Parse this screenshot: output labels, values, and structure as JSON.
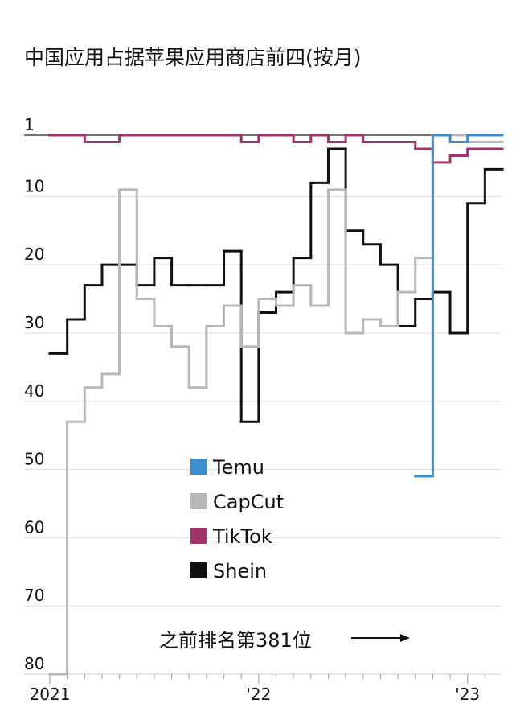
{
  "chart_data": {
    "type": "step-line",
    "title": "中国应用占据苹果应用商店前四(按月)",
    "annotation": "之前排名第381位",
    "categories": [
      "2021",
      null,
      null,
      null,
      null,
      null,
      null,
      null,
      null,
      null,
      null,
      null,
      "'22",
      null,
      null,
      null,
      null,
      null,
      null,
      null,
      null,
      null,
      null,
      null,
      "'23",
      null
    ],
    "ylim": [
      1,
      80
    ],
    "yticks": [
      1,
      10,
      20,
      30,
      40,
      50,
      60,
      70,
      80
    ],
    "y_inverted": true,
    "grid": true,
    "series": [
      {
        "name": "Temu",
        "color": "#3a8fd0",
        "values": [
          null,
          null,
          null,
          null,
          null,
          null,
          null,
          null,
          null,
          null,
          null,
          null,
          null,
          null,
          null,
          null,
          null,
          null,
          null,
          null,
          null,
          51,
          1,
          2,
          1,
          1
        ]
      },
      {
        "name": "CapCut",
        "color": "#b7b7b7",
        "values": [
          80,
          43,
          38,
          36,
          9,
          25,
          29,
          32,
          38,
          29,
          26,
          32,
          25,
          26,
          23,
          26,
          9,
          30,
          28,
          29,
          24,
          19,
          1,
          1,
          2,
          2
        ]
      },
      {
        "name": "TikTok",
        "color": "#a3346b",
        "values": [
          1,
          1,
          2,
          2,
          1,
          1,
          1,
          1,
          1,
          1,
          1,
          2,
          1,
          1,
          2,
          1,
          2,
          1,
          2,
          2,
          2,
          3,
          5,
          4,
          3,
          3
        ]
      },
      {
        "name": "Shein",
        "color": "#111111",
        "values": [
          33,
          28,
          23,
          20,
          20,
          23,
          19,
          23,
          23,
          23,
          18,
          43,
          27,
          24,
          19,
          8,
          3,
          15,
          17,
          20,
          29,
          25,
          24,
          30,
          11,
          6
        ]
      }
    ]
  }
}
